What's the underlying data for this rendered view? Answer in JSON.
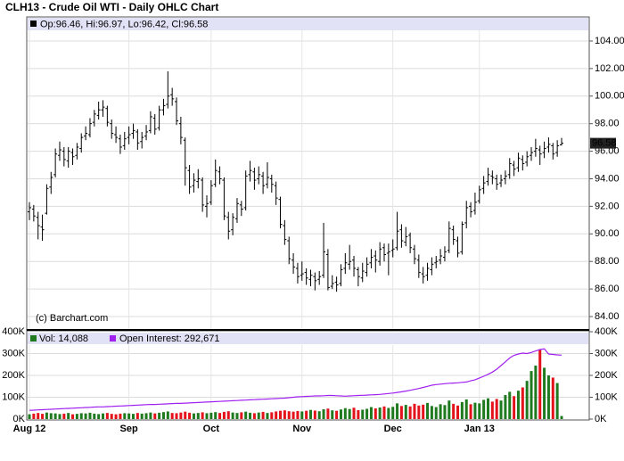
{
  "chart_data": [
    {
      "type": "ohlc",
      "title": "CLH13 - Crude Oil WTI - Daily OHLC Chart",
      "legend_text": "Op:96.46, Hi:96.97, Lo:96.42, Cl:96.58",
      "annotation": "(c) Barchart.com",
      "color": "#000000",
      "grid": true,
      "categories": [
        "Aug 12",
        null,
        null,
        null,
        null,
        null,
        null,
        null,
        null,
        null,
        null,
        null,
        null,
        null,
        null,
        null,
        null,
        null,
        null,
        null,
        null,
        null,
        null,
        "Sep",
        null,
        null,
        null,
        null,
        null,
        null,
        null,
        null,
        null,
        null,
        null,
        null,
        null,
        null,
        null,
        null,
        null,
        null,
        "Oct",
        null,
        null,
        null,
        null,
        null,
        null,
        null,
        null,
        null,
        null,
        null,
        null,
        null,
        null,
        null,
        null,
        null,
        null,
        null,
        null,
        "Nov",
        null,
        null,
        null,
        null,
        null,
        null,
        null,
        null,
        null,
        null,
        null,
        null,
        null,
        null,
        null,
        null,
        null,
        null,
        null,
        null,
        "Dec",
        null,
        null,
        null,
        null,
        null,
        null,
        null,
        null,
        null,
        null,
        null,
        null,
        null,
        null,
        null,
        null,
        null,
        null,
        null,
        "Jan 13",
        null,
        null,
        null,
        null,
        null,
        null,
        null,
        null,
        null,
        null,
        null,
        null,
        null,
        null,
        null,
        null,
        null,
        null,
        null
      ],
      "open": [
        91.6,
        91.8,
        91.2,
        90.5,
        91.5,
        93.4,
        94.3,
        95.7,
        96.0,
        95.3,
        95.9,
        95.7,
        96.2,
        97.1,
        97.2,
        98.1,
        98.6,
        99.0,
        99.1,
        98.0,
        97.2,
        96.9,
        96.4,
        97.0,
        97.3,
        97.4,
        96.7,
        97.1,
        97.5,
        98.4,
        97.7,
        99.0,
        99.4,
        100.1,
        99.6,
        98.0,
        96.8,
        94.6,
        93.5,
        93.8,
        93.9,
        92.0,
        92.3,
        93.6,
        94.5,
        93.9,
        91.2,
        90.3,
        91.1,
        92.1,
        91.9,
        94.3,
        94.5,
        94.0,
        94.2,
        93.6,
        94.0,
        93.5,
        92.5,
        90.6,
        89.5,
        88.1,
        87.5,
        87.0,
        87.2,
        86.7,
        86.9,
        86.7,
        87.0,
        88.5,
        86.2,
        86.5,
        86.4,
        87.5,
        87.8,
        88.1,
        87.4,
        86.8,
        87.2,
        87.9,
        88.4,
        88.0,
        89.0,
        88.6,
        88.8,
        89.0,
        90.3,
        89.4,
        89.9,
        88.9,
        88.1,
        87.1,
        87.0,
        87.4,
        87.9,
        88.1,
        88.3,
        88.8,
        90.3,
        89.5,
        88.7,
        90.8,
        92.0,
        91.7,
        92.4,
        93.3,
        93.8,
        94.2,
        94.0,
        93.7,
        94.0,
        94.3,
        95.0,
        94.8,
        95.4,
        95.2,
        95.7,
        96.0,
        96.1,
        95.9,
        96.3,
        96.4,
        95.9,
        96.46
      ],
      "high": [
        92.3,
        92.1,
        91.6,
        91.4,
        93.6,
        94.5,
        96.2,
        96.7,
        96.3,
        96.3,
        96.2,
        96.6,
        97.3,
        97.8,
        98.4,
        99.0,
        99.6,
        99.7,
        99.3,
        98.3,
        97.8,
        97.2,
        97.4,
        97.8,
        98.0,
        97.6,
        97.4,
        97.9,
        98.9,
        98.7,
        99.3,
        99.8,
        101.8,
        100.6,
        99.9,
        98.5,
        97.0,
        95.0,
        94.4,
        94.7,
        94.1,
        92.8,
        93.9,
        95.4,
        94.9,
        94.1,
        91.6,
        91.5,
        92.6,
        92.4,
        94.6,
        95.3,
        94.8,
        94.9,
        94.5,
        95.2,
        94.3,
        93.8,
        92.7,
        91.0,
        89.8,
        88.6,
        87.9,
        88.0,
        87.5,
        87.4,
        87.2,
        87.3,
        90.8,
        88.9,
        87.0,
        86.9,
        87.8,
        88.6,
        89.2,
        88.4,
        87.6,
        87.9,
        88.3,
        88.9,
        88.8,
        89.4,
        89.3,
        89.3,
        89.6,
        91.6,
        90.7,
        90.5,
        90.1,
        89.2,
        88.5,
        87.6,
        87.9,
        88.3,
        88.4,
        88.9,
        89.1,
        90.9,
        90.6,
        89.8,
        90.9,
        92.4,
        92.3,
        93.0,
        93.5,
        94.2,
        94.8,
        94.6,
        94.3,
        94.3,
        94.6,
        95.5,
        95.3,
        95.9,
        95.7,
        96.0,
        96.3,
        96.9,
        96.4,
        96.7,
        97.0,
        96.6,
        96.8,
        96.97
      ],
      "low": [
        91.0,
        90.9,
        89.6,
        89.5,
        91.4,
        92.9,
        94.1,
        95.3,
        94.9,
        94.8,
        95.0,
        95.4,
        95.9,
        96.8,
        97.0,
        97.8,
        98.3,
        98.5,
        97.8,
        96.9,
        96.6,
        95.8,
        96.1,
        96.5,
        96.9,
        96.1,
        96.2,
        96.8,
        97.3,
        97.2,
        97.5,
        98.6,
        99.1,
        99.3,
        97.9,
        96.5,
        93.5,
        92.9,
        93.0,
        93.3,
        91.6,
        91.2,
        92.1,
        93.4,
        93.6,
        91.0,
        89.6,
        89.9,
        90.8,
        91.3,
        91.7,
        93.8,
        93.2,
        93.6,
        92.9,
        93.3,
        93.0,
        92.1,
        90.4,
        89.2,
        87.8,
        87.1,
        86.4,
        86.6,
        86.3,
        86.2,
        85.9,
        86.3,
        86.8,
        85.9,
        86.0,
        85.8,
        86.2,
        87.1,
        87.4,
        86.9,
        86.2,
        86.5,
        86.9,
        87.5,
        87.2,
        87.7,
        88.0,
        87.0,
        88.3,
        88.8,
        89.0,
        89.1,
        88.6,
        87.8,
        86.8,
        86.4,
        86.6,
        87.0,
        87.5,
        87.8,
        88.0,
        88.6,
        89.2,
        88.3,
        88.5,
        90.4,
        91.2,
        91.4,
        92.2,
        92.9,
        93.5,
        93.6,
        93.2,
        93.4,
        93.6,
        94.0,
        94.2,
        94.5,
        94.6,
        94.9,
        95.3,
        95.6,
        95.0,
        95.5,
        95.9,
        95.4,
        95.6,
        96.42
      ],
      "close": [
        91.9,
        91.3,
        90.6,
        90.3,
        93.3,
        94.1,
        95.8,
        96.1,
        95.4,
        96.0,
        95.6,
        96.3,
        97.0,
        97.3,
        98.0,
        98.7,
        99.0,
        99.2,
        98.1,
        97.3,
        97.0,
        96.3,
        96.9,
        97.2,
        97.5,
        96.6,
        97.0,
        97.4,
        98.5,
        97.6,
        99.0,
        99.3,
        100.0,
        99.8,
        98.2,
        97.0,
        94.8,
        93.4,
        93.9,
        94.0,
        92.1,
        92.2,
        93.5,
        94.6,
        94.0,
        91.3,
        90.2,
        91.2,
        92.2,
        91.8,
        94.2,
        94.6,
        93.9,
        94.3,
        93.5,
        94.1,
        93.6,
        92.6,
        90.7,
        89.6,
        88.2,
        87.6,
        86.9,
        87.1,
        86.8,
        87.0,
        86.6,
        86.9,
        88.7,
        86.1,
        86.4,
        86.3,
        87.4,
        87.9,
        88.0,
        87.5,
        86.9,
        87.3,
        87.8,
        88.3,
        88.1,
        88.9,
        88.5,
        88.7,
        88.9,
        90.2,
        89.5,
        89.8,
        89.0,
        88.2,
        87.2,
        86.9,
        87.5,
        87.8,
        88.0,
        88.4,
        88.7,
        90.4,
        89.6,
        88.6,
        90.7,
        91.9,
        91.6,
        92.3,
        93.2,
        93.7,
        94.3,
        94.1,
        93.6,
        93.9,
        94.2,
        95.1,
        94.7,
        95.5,
        95.1,
        95.6,
        95.9,
        96.2,
        95.8,
        96.2,
        96.5,
        95.8,
        96.4,
        96.58
      ],
      "ylim": [
        83.16,
        105.68
      ],
      "yticks": [
        {
          "value": 84,
          "label": "84.00"
        },
        {
          "value": 86,
          "label": "86.00"
        },
        {
          "value": 88,
          "label": "88.00"
        },
        {
          "value": 90,
          "label": "90.00"
        },
        {
          "value": 92,
          "label": "92.00"
        },
        {
          "value": 94,
          "label": "94.00"
        },
        {
          "value": 96,
          "label": "96.00"
        },
        {
          "value": 98,
          "label": "98.00"
        },
        {
          "value": 100,
          "label": "100.00"
        },
        {
          "value": 102,
          "label": "102.00"
        },
        {
          "value": 104,
          "label": "104.00"
        }
      ]
    },
    {
      "type": "bar",
      "grid": true,
      "series": [
        {
          "name": "Vol: 14,088",
          "type": "bar",
          "color": "#1f7a1f",
          "down_color": "#e3121b",
          "values": [
            22000,
            25000,
            28000,
            24000,
            30000,
            27000,
            26000,
            23000,
            25000,
            28000,
            22000,
            24000,
            27000,
            26000,
            29000,
            25000,
            23000,
            26000,
            28000,
            24000,
            22000,
            25000,
            27000,
            26000,
            24000,
            28000,
            25000,
            27000,
            30000,
            26000,
            29000,
            32000,
            35000,
            28000,
            27000,
            30000,
            34000,
            29000,
            26000,
            28000,
            31000,
            27000,
            29000,
            32000,
            28000,
            33000,
            36000,
            30000,
            28000,
            31000,
            34000,
            29000,
            27000,
            30000,
            33000,
            28000,
            31000,
            35000,
            38000,
            40000,
            36000,
            34000,
            37000,
            35000,
            38000,
            42000,
            39000,
            36000,
            45000,
            48000,
            40000,
            38000,
            44000,
            50000,
            46000,
            52000,
            41000,
            43000,
            47000,
            55000,
            49000,
            53000,
            58000,
            51000,
            56000,
            72000,
            60000,
            65000,
            58000,
            70000,
            62000,
            66000,
            74000,
            60000,
            55000,
            68000,
            64000,
            85000,
            70000,
            62000,
            78000,
            90000,
            68000,
            75000,
            72000,
            88000,
            95000,
            80000,
            92000,
            85000,
            110000,
            125000,
            105000,
            130000,
            145000,
            175000,
            220000,
            245000,
            320000,
            235000,
            200000,
            190000,
            165000,
            14088
          ]
        },
        {
          "name": "Open Interest: 292,671",
          "type": "line",
          "color": "#a020f0",
          "values": [
            40000,
            41000,
            42000,
            43000,
            44000,
            45000,
            46000,
            47000,
            48000,
            49000,
            50000,
            51000,
            52000,
            53000,
            54000,
            55000,
            56000,
            56000,
            57000,
            58000,
            59000,
            60000,
            61000,
            62000,
            63000,
            64000,
            65000,
            66000,
            67000,
            67000,
            68000,
            69000,
            70000,
            71000,
            72000,
            72000,
            73000,
            74000,
            75000,
            76000,
            77000,
            78000,
            79000,
            80000,
            81000,
            82000,
            83000,
            84000,
            85000,
            86000,
            87000,
            88000,
            89000,
            90000,
            91000,
            92000,
            93000,
            94000,
            95000,
            96000,
            98000,
            100000,
            102000,
            103000,
            104000,
            105000,
            106000,
            106000,
            107000,
            108000,
            108000,
            107000,
            106000,
            105000,
            106000,
            107000,
            108000,
            109000,
            110000,
            111000,
            112000,
            113000,
            115000,
            117000,
            119000,
            122000,
            125000,
            128000,
            132000,
            136000,
            140000,
            145000,
            150000,
            155000,
            158000,
            160000,
            162000,
            164000,
            165000,
            166000,
            168000,
            170000,
            175000,
            180000,
            188000,
            196000,
            205000,
            215000,
            228000,
            245000,
            262000,
            280000,
            292000,
            298000,
            302000,
            300000,
            305000,
            312000,
            318000,
            322000,
            298000,
            296000,
            294000,
            292671
          ]
        }
      ],
      "ylim": [
        0,
        400000
      ],
      "yticks": [
        {
          "value": 0,
          "label": "0K"
        },
        {
          "value": 100000,
          "label": "100K"
        },
        {
          "value": 200000,
          "label": "200K"
        },
        {
          "value": 300000,
          "label": "300K"
        },
        {
          "value": 400000,
          "label": "400K"
        }
      ]
    }
  ]
}
